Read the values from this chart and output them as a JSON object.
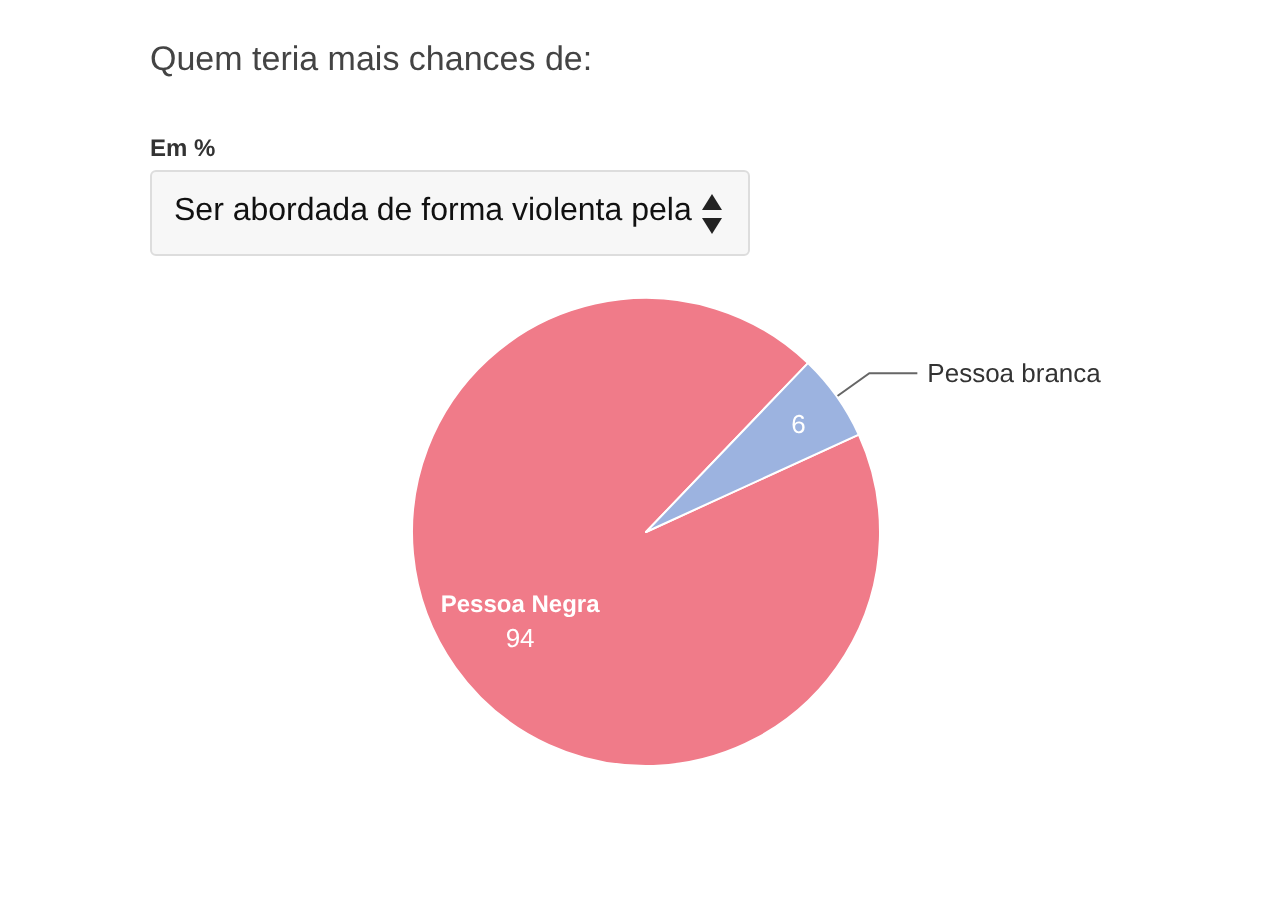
{
  "chart_data": {
    "type": "pie",
    "title": "Quem teria mais chances de:",
    "subtitle": "Em %",
    "annotations": [
      "Ser abordada de forma violenta pela"
    ],
    "categories": [
      "Pessoa Negra",
      "Pessoa branca"
    ],
    "values": [
      94,
      6
    ],
    "colors": [
      "#f07b89",
      "#9cb3e0"
    ],
    "data_labels": true
  }
}
